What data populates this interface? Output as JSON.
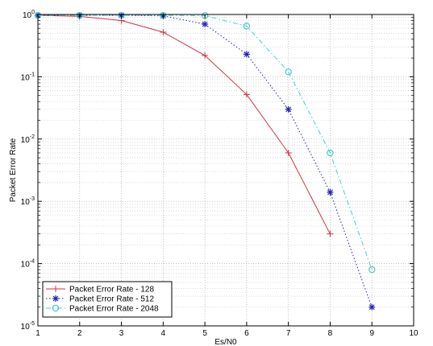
{
  "chart_data": {
    "type": "line",
    "xlabel": "Es/N0",
    "ylabel": "Packet Error Rate",
    "xlim": [
      1,
      10
    ],
    "ylim": [
      1e-05,
      1
    ],
    "yscale": "log",
    "grid": true,
    "legend_position": "bottom-left",
    "x_ticks": [
      "1",
      "2",
      "3",
      "4",
      "5",
      "6",
      "7",
      "8",
      "9",
      "10"
    ],
    "y_ticks": [
      {
        "value": 1,
        "base": "10",
        "exp": "0"
      },
      {
        "value": 0.1,
        "base": "10",
        "exp": "-1"
      },
      {
        "value": 0.01,
        "base": "10",
        "exp": "-2"
      },
      {
        "value": 0.001,
        "base": "10",
        "exp": "-3"
      },
      {
        "value": 0.0001,
        "base": "10",
        "exp": "-4"
      },
      {
        "value": 1e-05,
        "base": "10",
        "exp": "-5"
      }
    ],
    "series": [
      {
        "name": "Packet Error Rate - 128",
        "color": "#cc3344",
        "marker": "plus",
        "line": "solid",
        "x": [
          1,
          2,
          3,
          4,
          5,
          6,
          7,
          8
        ],
        "y": [
          0.97,
          0.93,
          0.8,
          0.52,
          0.22,
          0.052,
          0.006,
          0.0003
        ]
      },
      {
        "name": "Packet Error Rate - 512",
        "color": "#2222aa",
        "marker": "star",
        "line": "dotted",
        "x": [
          1,
          2,
          3,
          4,
          5,
          6,
          7,
          8,
          9
        ],
        "y": [
          0.97,
          0.97,
          0.97,
          0.95,
          0.7,
          0.23,
          0.03,
          0.0014,
          2e-05
        ]
      },
      {
        "name": "Packet Error Rate - 2048",
        "color": "#44cccc",
        "marker": "circle",
        "line": "dashdot",
        "x": [
          1,
          2,
          3,
          4,
          5,
          6,
          7,
          8,
          9
        ],
        "y": [
          0.97,
          0.97,
          0.97,
          0.97,
          0.96,
          0.65,
          0.12,
          0.006,
          8e-05
        ]
      }
    ]
  }
}
